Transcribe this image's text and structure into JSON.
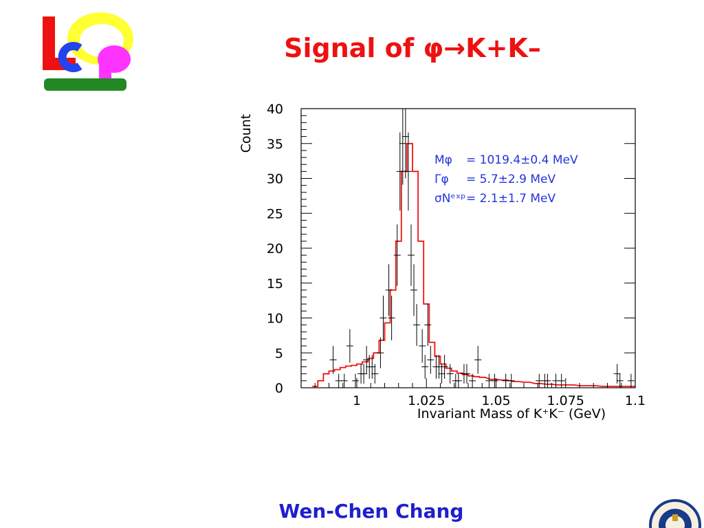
{
  "slide": {
    "title": "Signal of φ→K+K–",
    "author": "Wen-Chen Chang",
    "logo_icon": "leps-logo-icon",
    "seal_icon": "academia-sinica-seal-icon",
    "colors": {
      "title": "#ee1111",
      "author": "#1f1fcc",
      "fit_line": "#ee1111",
      "fit_text": "#2233dd",
      "data": "#000000"
    }
  },
  "chart_data": {
    "type": "histogram",
    "ylabel": "Count",
    "xlabel": "Invariant Mass of K⁺K⁻ (GeV)",
    "xlim": [
      0.98,
      1.1
    ],
    "ylim": [
      0,
      40
    ],
    "x_ticks": [
      "1",
      "1.025",
      "1.05",
      "1.075",
      "1.1"
    ],
    "x_tick_values": [
      1.0,
      1.025,
      1.05,
      1.075,
      1.1
    ],
    "y_ticks": [
      "0",
      "5",
      "10",
      "15",
      "20",
      "25",
      "30",
      "35",
      "40"
    ],
    "y_tick_values": [
      0,
      5,
      10,
      15,
      20,
      25,
      30,
      35,
      40
    ],
    "grid": false,
    "annotations": [
      {
        "name": "Mφ",
        "value": "= 1019.4±0.4 MeV"
      },
      {
        "name": "Γφ",
        "value": "=        5.7±2.9 MeV"
      },
      {
        "name": "σNᵉˣᵖ",
        "value": "=        2.1±1.7 MeV"
      }
    ],
    "data_points": {
      "x": [
        0.9915,
        0.9935,
        0.9955,
        0.9975,
        0.9995,
        1.0015,
        1.0025,
        1.0035,
        1.0045,
        1.0055,
        1.0065,
        1.0085,
        1.0095,
        1.0115,
        1.0125,
        1.0145,
        1.0155,
        1.0165,
        1.0175,
        1.0185,
        1.0195,
        1.0205,
        1.0215,
        1.0235,
        1.0245,
        1.0255,
        1.0265,
        1.0285,
        1.0295,
        1.0305,
        1.0315,
        1.0335,
        1.0355,
        1.0365,
        1.0385,
        1.0395,
        1.0415,
        1.0435,
        1.0475,
        1.0495,
        1.0535,
        1.0555,
        1.0655,
        1.0675,
        1.0685,
        1.0715,
        1.0735,
        1.0935,
        1.0945,
        1.0985
      ],
      "y": [
        4,
        1,
        1,
        6,
        1,
        2,
        2,
        4,
        3,
        3,
        2,
        5,
        10,
        14,
        10,
        19,
        31,
        35,
        36,
        31,
        19,
        14,
        9,
        6,
        3,
        9,
        4,
        3,
        3,
        2,
        3,
        2,
        1,
        1,
        2,
        2,
        1,
        4,
        1,
        1,
        1,
        1,
        1,
        1,
        1,
        1,
        1,
        2,
        1,
        1
      ],
      "err": [
        2.0,
        1.0,
        1.0,
        2.4,
        1.0,
        1.4,
        1.4,
        2.0,
        1.7,
        1.7,
        1.4,
        2.2,
        3.2,
        3.7,
        3.2,
        4.4,
        5.6,
        5.9,
        6.0,
        5.6,
        4.4,
        3.7,
        3.0,
        2.4,
        1.7,
        3.0,
        2.0,
        1.7,
        1.7,
        1.4,
        1.7,
        1.4,
        1.0,
        1.0,
        1.4,
        1.4,
        1.0,
        2.0,
        1.0,
        1.0,
        1.0,
        1.0,
        1.0,
        1.0,
        1.0,
        1.0,
        1.0,
        1.4,
        1.0,
        1.0
      ]
    },
    "fit_curve": {
      "x": [
        0.985,
        0.987,
        0.989,
        0.991,
        0.993,
        0.995,
        0.997,
        0.999,
        1.001,
        1.003,
        1.005,
        1.007,
        1.009,
        1.011,
        1.013,
        1.015,
        1.017,
        1.019,
        1.021,
        1.023,
        1.025,
        1.027,
        1.029,
        1.031,
        1.033,
        1.035,
        1.037,
        1.039,
        1.041,
        1.043,
        1.045,
        1.049,
        1.053,
        1.057,
        1.061,
        1.065,
        1.069,
        1.073,
        1.077,
        1.081,
        1.085,
        1.089,
        1.093,
        1.097,
        1.1
      ],
      "y": [
        0.2,
        1.0,
        2.0,
        2.4,
        2.6,
        2.9,
        3.1,
        3.2,
        3.4,
        3.7,
        4.2,
        5.0,
        6.8,
        9.3,
        14.0,
        21.0,
        31.0,
        35.0,
        31.0,
        21.0,
        12.0,
        6.5,
        4.5,
        3.4,
        2.8,
        2.4,
        2.1,
        1.9,
        1.7,
        1.6,
        1.5,
        1.2,
        1.1,
        0.9,
        0.8,
        0.6,
        0.5,
        0.4,
        0.4,
        0.3,
        0.3,
        0.2,
        0.2,
        0.2,
        0.2
      ]
    }
  }
}
